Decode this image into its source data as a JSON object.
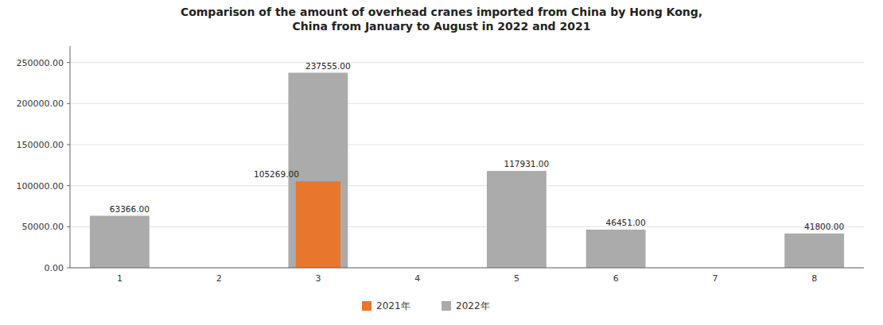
{
  "chart_data": {
    "type": "bar",
    "title": "Comparison of the amount of overhead cranes imported from China by Hong Kong,\nChina from January to August in 2022 and 2021",
    "categories": [
      "1",
      "2",
      "3",
      "4",
      "5",
      "6",
      "7",
      "8"
    ],
    "series": [
      {
        "name": "2021年",
        "color": "#E8762C",
        "values": [
          0,
          0,
          105269,
          0,
          0,
          0,
          0,
          0
        ],
        "value_labels": [
          null,
          null,
          "105269.00",
          null,
          null,
          null,
          null,
          null
        ]
      },
      {
        "name": "2022年",
        "color": "#ABABAB",
        "values": [
          63366,
          0,
          237555,
          0,
          117931,
          46451,
          0,
          41800
        ],
        "value_labels": [
          "63366.00",
          null,
          "237555.00",
          null,
          "117931.00",
          "46451.00",
          null,
          "41800.00"
        ]
      }
    ],
    "ylim": [
      0,
      270000
    ],
    "yticks": [
      {
        "value": 0,
        "label": "0.00"
      },
      {
        "value": 50000,
        "label": "50000.00"
      },
      {
        "value": 100000,
        "label": "100000.00"
      },
      {
        "value": 150000,
        "label": "150000.00"
      },
      {
        "value": 200000,
        "label": "200000.00"
      },
      {
        "value": 250000,
        "label": "250000.00"
      }
    ],
    "grid": true,
    "data_labels": true,
    "legend": "bottom"
  }
}
